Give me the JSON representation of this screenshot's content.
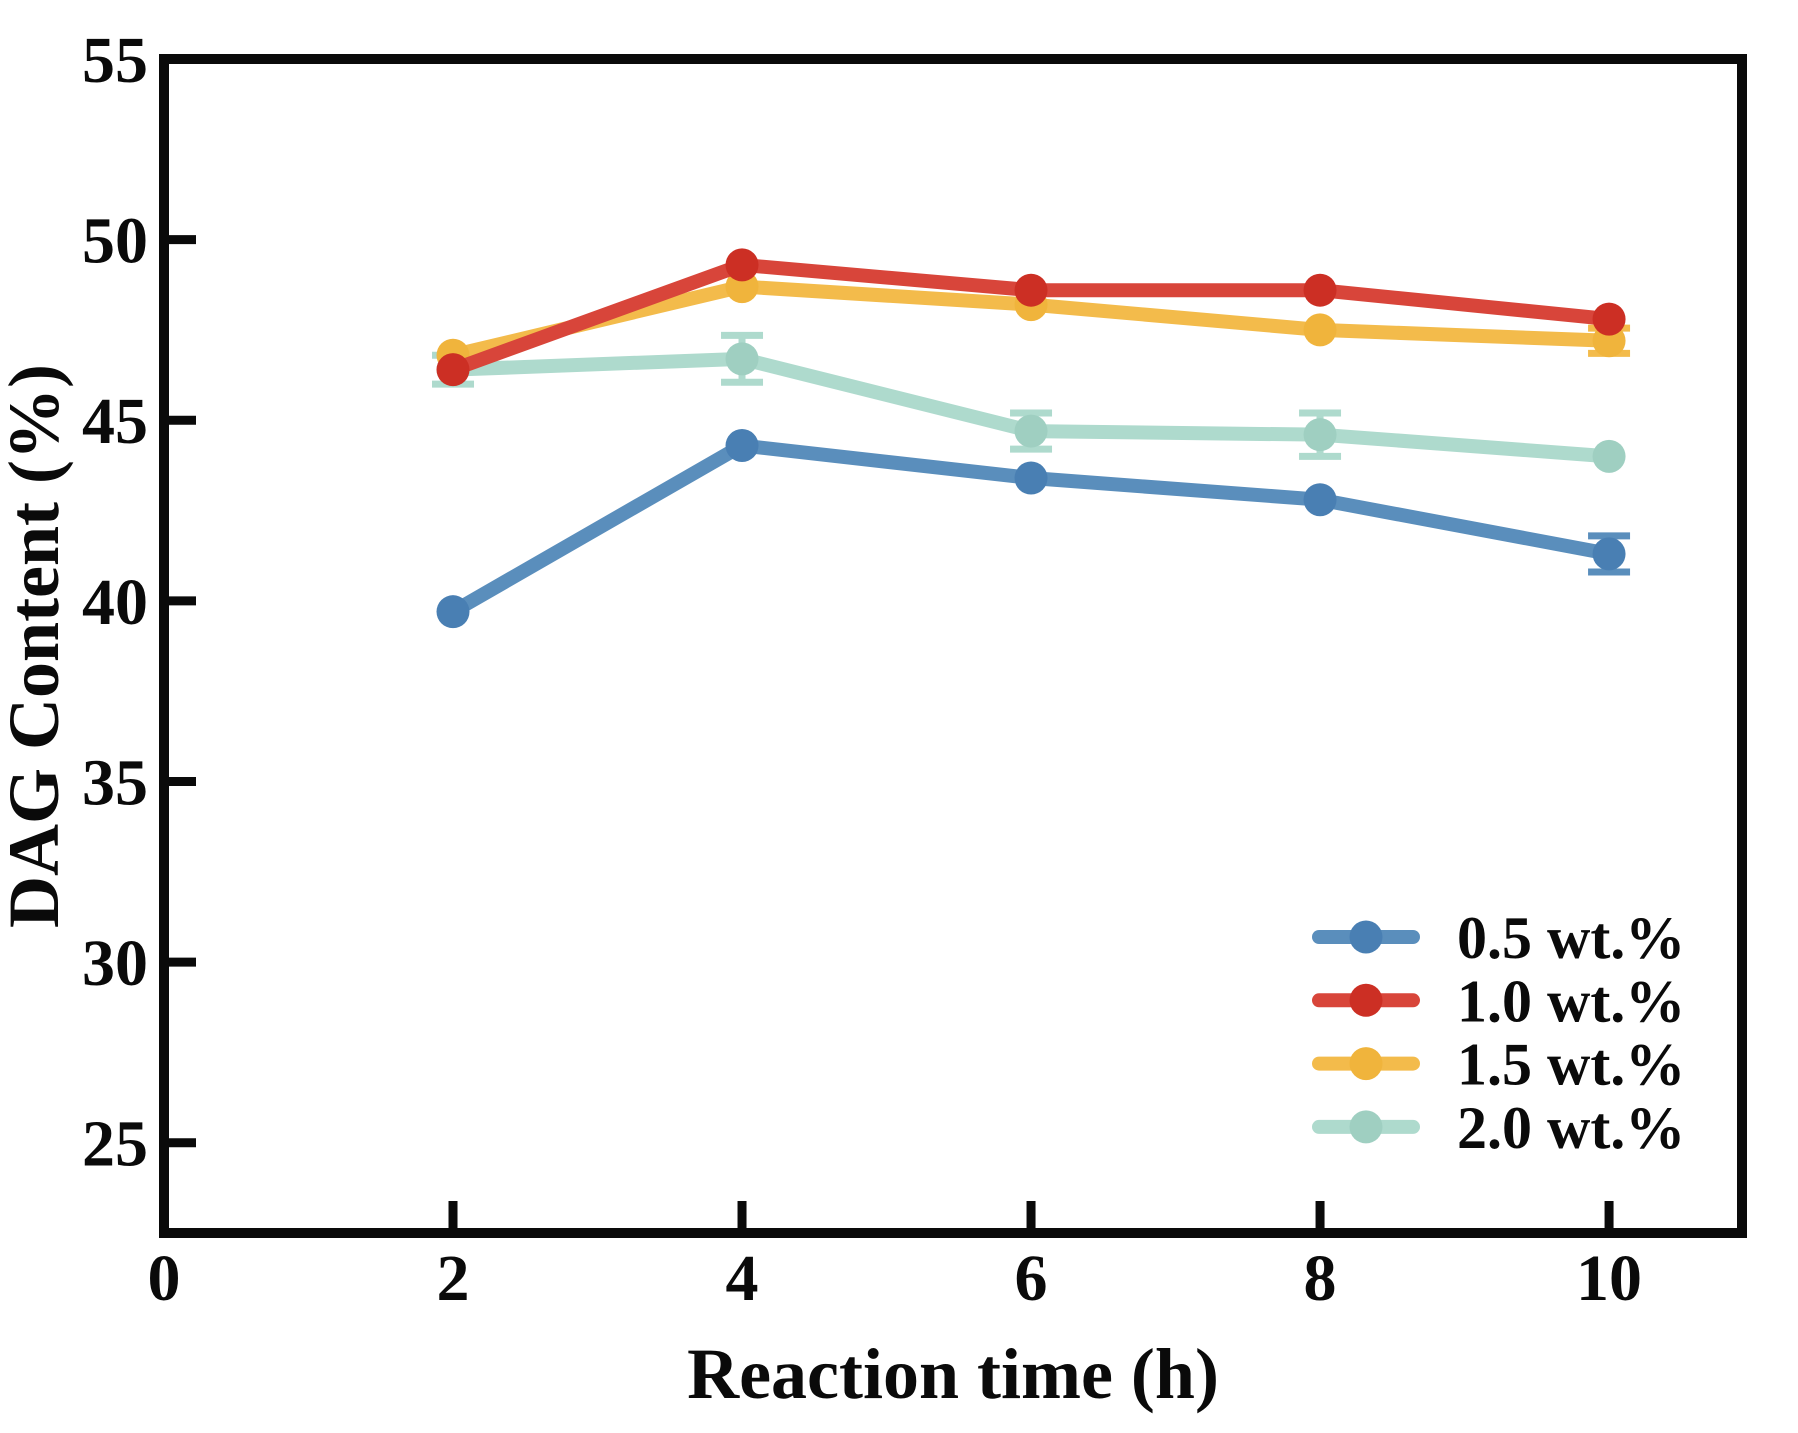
{
  "chart_data": {
    "type": "line",
    "title": "",
    "xlabel": "Reaction time (h)",
    "ylabel": "DAG Content (%)",
    "x": [
      2,
      4,
      6,
      8,
      10
    ],
    "xlim": [
      0,
      10.92
    ],
    "ylim": [
      22.5,
      55
    ],
    "xticks": [
      0,
      2,
      4,
      6,
      8,
      10
    ],
    "yticks": [
      25,
      30,
      35,
      40,
      45,
      50,
      55
    ],
    "grid": false,
    "legend_position": "lower-right",
    "axis_color": "#0a0a0a",
    "series": [
      {
        "name": "0.5 wt.%",
        "line_color": "#5a8ebc",
        "marker_color": "#497fb3",
        "values": [
          39.7,
          44.3,
          43.4,
          42.8,
          41.3
        ],
        "yerr": [
          0,
          0,
          0,
          0,
          0.5
        ]
      },
      {
        "name": "1.0 wt.%",
        "line_color": "#d8453a",
        "marker_color": "#cc2f24",
        "values": [
          46.4,
          49.3,
          48.6,
          48.6,
          47.8
        ],
        "yerr": [
          0,
          0,
          0,
          0,
          0
        ]
      },
      {
        "name": "1.5 wt.%",
        "line_color": "#f3bb4b",
        "marker_color": "#f0b43c",
        "values": [
          46.8,
          48.7,
          48.2,
          47.5,
          47.2
        ],
        "yerr": [
          0,
          0,
          0,
          0,
          0.35
        ]
      },
      {
        "name": "2.0 wt.%",
        "line_color": "#aedacd",
        "marker_color": "#9fcfc1",
        "values": [
          46.4,
          46.7,
          44.7,
          44.6,
          44.0
        ],
        "yerr": [
          0.4,
          0.65,
          0.5,
          0.6,
          0
        ]
      }
    ]
  }
}
